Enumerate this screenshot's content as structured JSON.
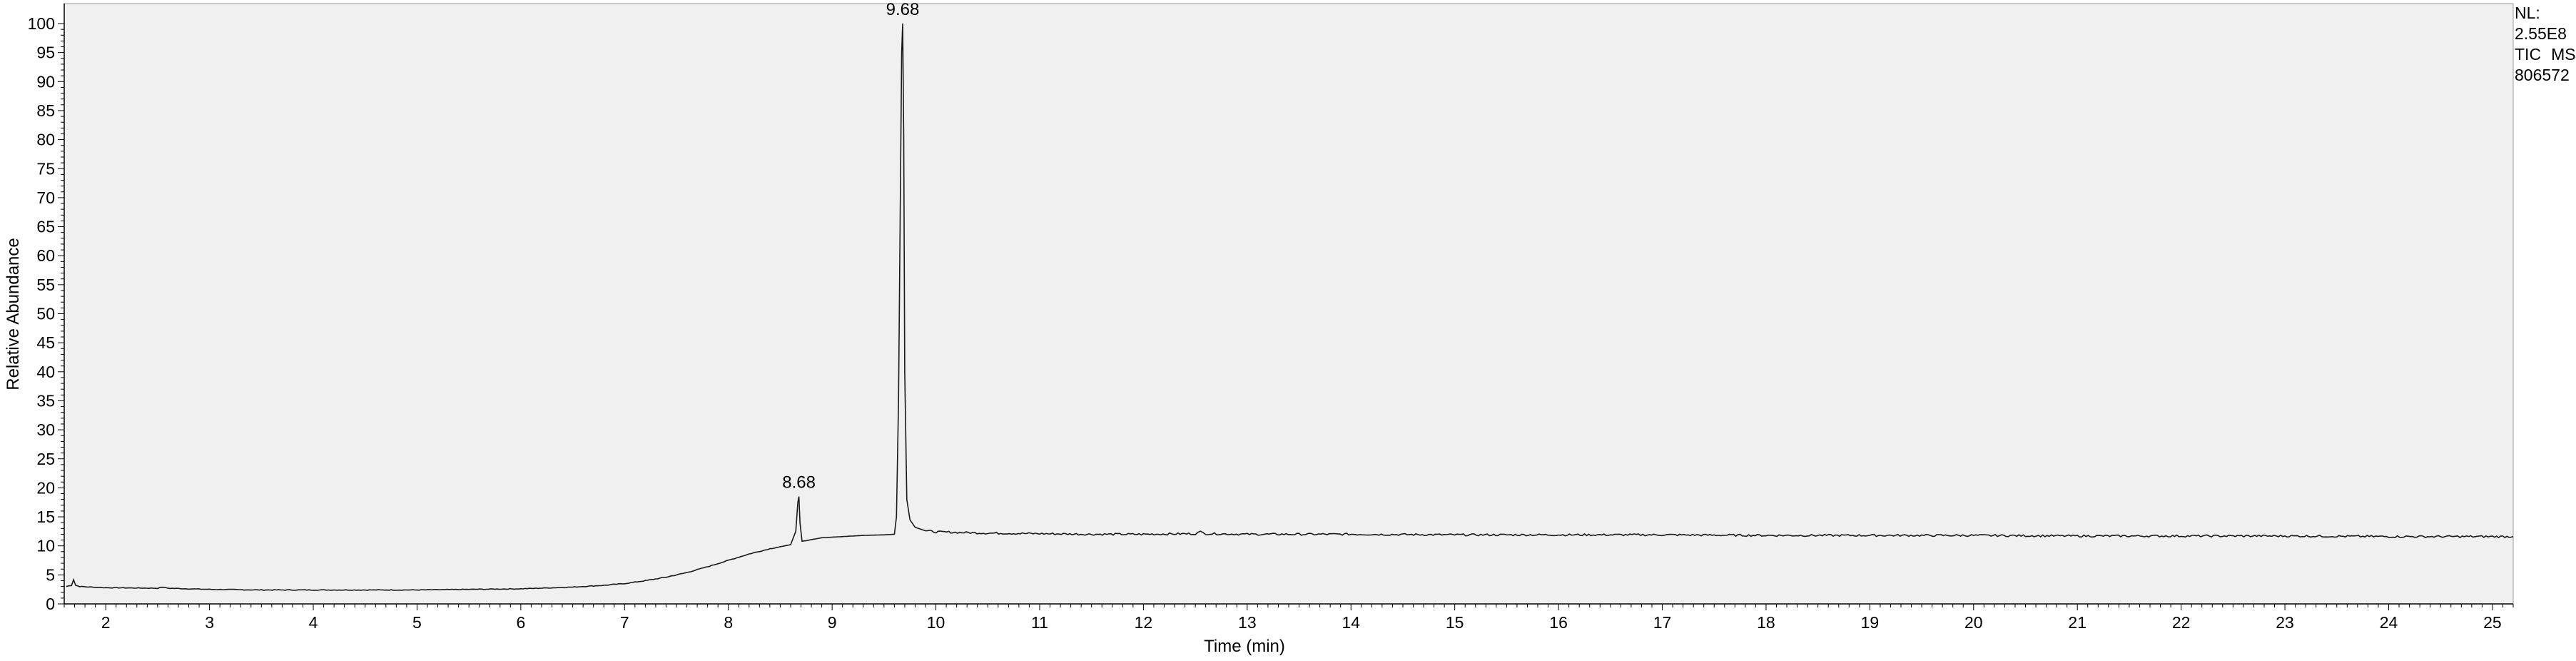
{
  "chart_data": {
    "type": "line",
    "xlabel": "Time (min)",
    "ylabel": "Relative Abundance",
    "xlim": [
      1.6,
      25.2
    ],
    "ylim": [
      0,
      100
    ],
    "x_ticks": [
      2,
      3,
      4,
      5,
      6,
      7,
      8,
      9,
      10,
      11,
      12,
      13,
      14,
      15,
      16,
      17,
      18,
      19,
      20,
      21,
      22,
      23,
      24,
      25
    ],
    "y_ticks": [
      0,
      5,
      10,
      15,
      20,
      25,
      30,
      35,
      40,
      45,
      50,
      55,
      60,
      65,
      70,
      75,
      80,
      85,
      90,
      95,
      100
    ],
    "grid": false,
    "series": [
      {
        "x": [
          1.62,
          1.67,
          1.69,
          1.71,
          1.75,
          1.85,
          2.0,
          2.5,
          2.55,
          2.6,
          3.0,
          3.5,
          4.0,
          4.5,
          5.0,
          5.5,
          6.0,
          6.5,
          6.8,
          7.0,
          7.2,
          7.4,
          7.6,
          7.8,
          8.0,
          8.2,
          8.4,
          8.6,
          8.65,
          8.67,
          8.68,
          8.69,
          8.71,
          8.75,
          8.9,
          9.1,
          9.3,
          9.5,
          9.6,
          9.62,
          9.64,
          9.66,
          9.67,
          9.68,
          9.69,
          9.7,
          9.72,
          9.75,
          9.8,
          9.9,
          10.0,
          10.5,
          11.0,
          11.5,
          12.0,
          12.5,
          12.55,
          12.6,
          13.0,
          14.0,
          15.0,
          16.0,
          17.0,
          18.0,
          19.0,
          20.0,
          21.0,
          22.0,
          23.0,
          24.0,
          25.0,
          25.2
        ],
        "y": [
          3.0,
          3.2,
          4.2,
          3.2,
          3.0,
          2.9,
          2.8,
          2.7,
          2.9,
          2.7,
          2.5,
          2.4,
          2.4,
          2.4,
          2.4,
          2.5,
          2.6,
          2.9,
          3.2,
          3.5,
          4.0,
          4.6,
          5.4,
          6.4,
          7.5,
          8.6,
          9.5,
          10.2,
          12.5,
          17.5,
          18.5,
          14.0,
          10.8,
          10.9,
          11.4,
          11.6,
          11.8,
          11.9,
          12.0,
          15.0,
          35.0,
          75.0,
          95.0,
          100.0,
          80.0,
          40.0,
          18.0,
          14.5,
          13.2,
          12.6,
          12.4,
          12.2,
          12.1,
          12.0,
          12.0,
          12.1,
          12.4,
          12.1,
          12.0,
          12.0,
          11.9,
          11.9,
          11.9,
          11.8,
          11.8,
          11.8,
          11.7,
          11.7,
          11.7,
          11.6,
          11.6,
          11.6
        ]
      }
    ],
    "peak_annotations": [
      {
        "x": 8.68,
        "y": 18.5,
        "label": "8.68"
      },
      {
        "x": 9.68,
        "y": 100.0,
        "label": "9.68"
      }
    ],
    "colors": {
      "plot_bg": "#f0f0f0",
      "line": "#1a1a1a",
      "axis": "#000000"
    }
  },
  "scan_info": {
    "nl_label": "NL:",
    "nl_value": "2.55E8",
    "filter_type": "TIC",
    "filter_ms": "MS",
    "file_name": "806572"
  }
}
